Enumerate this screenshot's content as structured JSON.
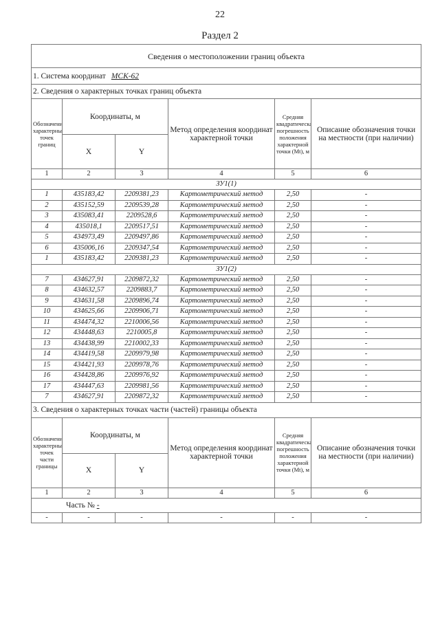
{
  "page_number": "22",
  "section_title": "Раздел 2",
  "table_title": "Сведения о местоположении границ объекта",
  "coord_system": {
    "label": "1. Система координат",
    "value": "МСК-62"
  },
  "section2_title": "2. Сведения о характерных точках границ объекта",
  "header": {
    "col1": "Обозначение характерных точек границ",
    "col1_part": "Обозначение характерных точек части границы",
    "coords": "Координаты, м",
    "x": "X",
    "y": "Y",
    "method": "Метод определения координат характерной точки",
    "mt": "Средняя квадратическая погрешность положения характерной точки (Mt), м",
    "desc": "Описание обозначения точки на местности (при наличии)",
    "nums": [
      "1",
      "2",
      "3",
      "4",
      "5",
      "6"
    ]
  },
  "groups": [
    {
      "name": "ЗУ1(1)",
      "rows": [
        [
          "1",
          "435183,42",
          "2209381,23",
          "Картометрический метод",
          "2,50",
          "-"
        ],
        [
          "2",
          "435152,59",
          "2209539,28",
          "Картометрический метод",
          "2,50",
          "-"
        ],
        [
          "3",
          "435083,41",
          "2209528,6",
          "Картометрический метод",
          "2,50",
          "-"
        ],
        [
          "4",
          "435018,1",
          "2209517,51",
          "Картометрический метод",
          "2,50",
          "-"
        ],
        [
          "5",
          "434973,49",
          "2209497,86",
          "Картометрический метод",
          "2,50",
          "-"
        ],
        [
          "6",
          "435006,16",
          "2209347,54",
          "Картометрический метод",
          "2,50",
          "-"
        ],
        [
          "1",
          "435183,42",
          "2209381,23",
          "Картометрический метод",
          "2,50",
          "-"
        ]
      ]
    },
    {
      "name": "ЗУ1(2)",
      "rows": [
        [
          "7",
          "434627,91",
          "2209872,32",
          "Картометрический метод",
          "2,50",
          "-"
        ],
        [
          "8",
          "434632,57",
          "2209883,7",
          "Картометрический метод",
          "2,50",
          "-"
        ],
        [
          "9",
          "434631,58",
          "2209896,74",
          "Картометрический метод",
          "2,50",
          "-"
        ],
        [
          "10",
          "434625,66",
          "2209906,71",
          "Картометрический метод",
          "2,50",
          "-"
        ],
        [
          "11",
          "434474,32",
          "2210006,56",
          "Картометрический метод",
          "2,50",
          "-"
        ],
        [
          "12",
          "434448,63",
          "2210005,8",
          "Картометрический метод",
          "2,50",
          "-"
        ],
        [
          "13",
          "434438,99",
          "2210002,33",
          "Картометрический метод",
          "2,50",
          "-"
        ],
        [
          "14",
          "434419,58",
          "2209979,98",
          "Картометрический метод",
          "2,50",
          "-"
        ],
        [
          "15",
          "434421,93",
          "2209978,76",
          "Картометрический метод",
          "2,50",
          "-"
        ],
        [
          "16",
          "434428,86",
          "2209976,92",
          "Картометрический метод",
          "2,50",
          "-"
        ],
        [
          "17",
          "434447,63",
          "2209981,56",
          "Картометрический метод",
          "2,50",
          "-"
        ],
        [
          "7",
          "434627,91",
          "2209872,32",
          "Картометрический метод",
          "2,50",
          "-"
        ]
      ]
    }
  ],
  "section3_title": "3. Сведения о характерных точках части (частей) границы объекта",
  "part_label": "Часть №",
  "part_value": "-",
  "part_row": [
    "-",
    "-",
    "-",
    "-",
    "-",
    "-"
  ]
}
